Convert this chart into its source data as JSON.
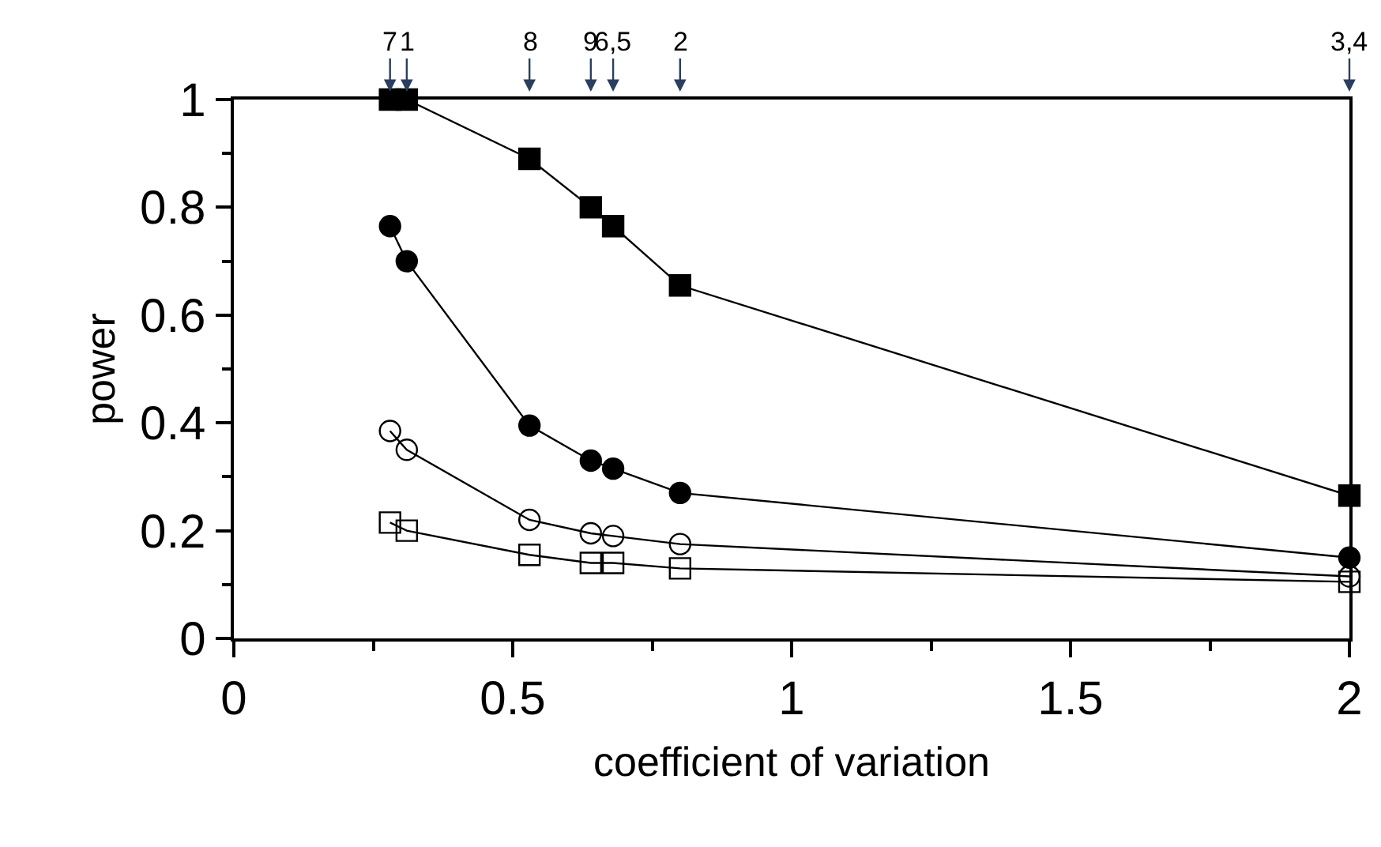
{
  "chart_data": {
    "type": "line",
    "xlabel": "coefficient of variation",
    "ylabel": "power",
    "x": [
      0.28,
      0.31,
      0.53,
      0.64,
      0.68,
      0.8,
      2.0
    ],
    "series": [
      {
        "color": "#000000",
        "marker": "square",
        "values": [
          1.0,
          1.0,
          0.89,
          0.8,
          0.765,
          0.655,
          0.265
        ]
      },
      {
        "color": "#000000",
        "marker": "circle",
        "values": [
          0.765,
          0.7,
          0.395,
          0.33,
          0.315,
          0.27,
          0.15
        ]
      },
      {
        "color": "#000000",
        "marker": "circle-open",
        "values": [
          0.385,
          0.35,
          0.22,
          0.195,
          0.19,
          0.175,
          0.115
        ]
      },
      {
        "color": "#000000",
        "marker": "square-open",
        "values": [
          0.215,
          0.2,
          0.155,
          0.14,
          0.14,
          0.13,
          0.105
        ]
      }
    ],
    "annotations": [
      {
        "text": "7",
        "x": 0.28
      },
      {
        "text": "1",
        "x": 0.31
      },
      {
        "text": "8",
        "x": 0.53
      },
      {
        "text": "9",
        "x": 0.64
      },
      {
        "text": "6,5",
        "x": 0.68
      },
      {
        "text": "2",
        "x": 0.8
      },
      {
        "text": "3,4",
        "x": 2.0
      }
    ],
    "xlim": [
      0,
      2
    ],
    "xticks": [
      0,
      0.5,
      1,
      1.5,
      2
    ],
    "ylim": [
      0,
      1
    ],
    "yticks": [
      0,
      0.2,
      0.4,
      0.6,
      0.8,
      1
    ],
    "line_style": "solid"
  }
}
